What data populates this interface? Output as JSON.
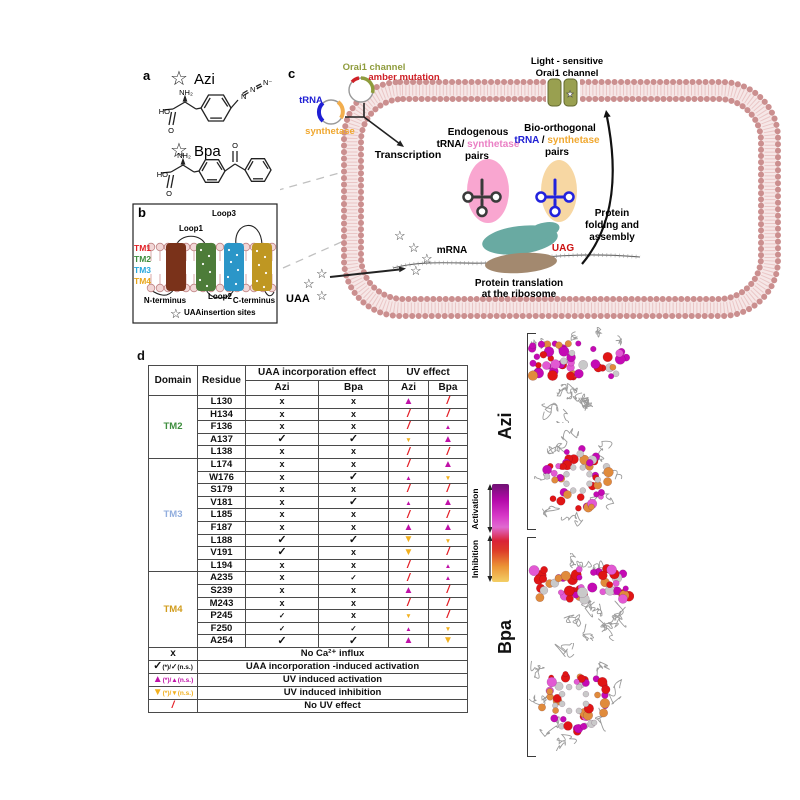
{
  "colors": {
    "magenta": "#c011a8",
    "orange": "#f2b01e",
    "red": "#e31f26"
  },
  "panel_a": {
    "label": "a",
    "azi_star": "☆",
    "azi_name": "Azi",
    "azi_nh2": "NH₂",
    "azi_ho": "HO",
    "azi_o": "O",
    "azide_n1": "N",
    "azide_n2": "N⁺",
    "azide_n3": "N⁻",
    "bpa_star": "☆",
    "bpa_name": "Bpa",
    "bpa_nh2": "NH₂",
    "bpa_ho": "HO",
    "bpa_o": "O",
    "bpa_keto_o": "O"
  },
  "panel_b": {
    "label": "b",
    "loop1": "Loop1",
    "loop2": "Loop2",
    "loop3": "Loop3",
    "tm1": {
      "label": "TM1",
      "color": "#e31e24"
    },
    "tm2": {
      "label": "TM2",
      "color": "#3e8e3e"
    },
    "tm3": {
      "label": "TM3",
      "color": "#2aa8dc"
    },
    "tm4": {
      "label": "TM4",
      "color": "#e8a61b"
    },
    "n_terminus": "N-terminus",
    "c_terminus": "C-terminus",
    "star": "☆",
    "insertion_note": "UAAinsertion sites"
  },
  "panel_c": {
    "label": "c",
    "plasmid_gene": "Orai1 channel",
    "plasmid_mutation": "amber mutation",
    "trna": "tRNA",
    "synthetase": "synthetase",
    "transcription": "Transcription",
    "endogenous": {
      "line1": "Endogenous",
      "trna": "tRNA/",
      "synthetase": " synthetase",
      "line3": "pairs"
    },
    "bio": {
      "line1": "Bio-orthogonal",
      "trna": "tRNA",
      "sep": " / ",
      "synthetase": "synthetase",
      "line3": "pairs"
    },
    "light_sensitive_1": "Light - sensitive",
    "light_sensitive_2": "Orai1 channel",
    "uaa": "UAA",
    "mrna": "mRNA",
    "uag": "UAG",
    "translation_1": "Protein translation",
    "translation_2": "at the ribosome",
    "folding_1": "Protein",
    "folding_2": "folding and",
    "folding_3": "assembly",
    "channel_star": "★"
  },
  "panel_d": {
    "label": "d",
    "table": {
      "headers": {
        "domain": "Domain",
        "residue": "Residue",
        "uaa_effect": "UAA incorporation effect",
        "uv_effect": "UV effect",
        "sub": [
          "Azi",
          "Bpa",
          "Azi",
          "Bpa"
        ]
      },
      "groups": [
        {
          "domain": "TM2",
          "color": "#3e8e3e",
          "rows": [
            {
              "residue": "L130",
              "cells": [
                "x",
                "x",
                "u",
                "s"
              ]
            },
            {
              "residue": "H134",
              "cells": [
                "x",
                "x",
                "s",
                "s"
              ]
            },
            {
              "residue": "F136",
              "cells": [
                "x",
                "x",
                "s",
                "un"
              ]
            },
            {
              "residue": "A137",
              "cells": [
                "c",
                "c",
                "dn",
                "u"
              ]
            },
            {
              "residue": "L138",
              "cells": [
                "x",
                "x",
                "s",
                "s"
              ]
            }
          ]
        },
        {
          "domain": "TM3",
          "color": "#92aede",
          "rows": [
            {
              "residue": "L174",
              "cells": [
                "x",
                "x",
                "s",
                "u"
              ]
            },
            {
              "residue": "W176",
              "cells": [
                "x",
                "c",
                "un",
                "dn"
              ]
            },
            {
              "residue": "S179",
              "cells": [
                "x",
                "x",
                "s",
                "s"
              ]
            },
            {
              "residue": "V181",
              "cells": [
                "x",
                "c",
                "un",
                "u"
              ]
            },
            {
              "residue": "L185",
              "cells": [
                "x",
                "x",
                "s",
                "s"
              ]
            },
            {
              "residue": "F187",
              "cells": [
                "x",
                "x",
                "u",
                "u"
              ]
            },
            {
              "residue": "L188",
              "cells": [
                "c",
                "c",
                "d",
                "dn"
              ]
            },
            {
              "residue": "V191",
              "cells": [
                "c",
                "x",
                "d",
                "s"
              ]
            },
            {
              "residue": "L194",
              "cells": [
                "x",
                "x",
                "s",
                "un"
              ]
            }
          ]
        },
        {
          "domain": "TM4",
          "color": "#d19c1d",
          "rows": [
            {
              "residue": "A235",
              "cells": [
                "x",
                "cn",
                "s",
                "un"
              ]
            },
            {
              "residue": "S239",
              "cells": [
                "x",
                "x",
                "u",
                "s"
              ]
            },
            {
              "residue": "M243",
              "cells": [
                "x",
                "x",
                "s",
                "s"
              ]
            },
            {
              "residue": "P245",
              "cells": [
                "cn",
                "x",
                "dn",
                "s"
              ]
            },
            {
              "residue": "F250",
              "cells": [
                "cn",
                "cn",
                "un",
                "dn"
              ]
            },
            {
              "residue": "A254",
              "cells": [
                "c",
                "c",
                "u",
                "d"
              ]
            }
          ]
        }
      ],
      "legend": [
        {
          "key": [
            {
              "t": "x",
              "c": "sx lg"
            }
          ],
          "text": "No Ca²⁺ influx"
        },
        {
          "key": [
            {
              "t": "✓",
              "c": "ck b"
            },
            {
              "t": "(*)/",
              "c": "tn"
            },
            {
              "t": "✓",
              "c": "ck s"
            },
            {
              "t": "(n.s.)",
              "c": "tn"
            }
          ],
          "text": "UAA incorporation -induced activation"
        },
        {
          "key": [
            {
              "t": "▲",
              "c": "up b"
            },
            {
              "t": "(*)/",
              "c": "tn up"
            },
            {
              "t": "▲",
              "c": "up s"
            },
            {
              "t": "(n.s.)",
              "c": "tn up"
            }
          ],
          "text": "UV induced activation"
        },
        {
          "key": [
            {
              "t": "▼",
              "c": "dn b"
            },
            {
              "t": "(*)/",
              "c": "tn dn"
            },
            {
              "t": "▼",
              "c": "dn s"
            },
            {
              "t": "(n.s.)",
              "c": "tn dn"
            }
          ],
          "text": "UV induced inhibition"
        },
        {
          "key": [
            {
              "t": "/",
              "c": "sl lg"
            }
          ],
          "text": "No UV effect"
        }
      ]
    },
    "colorbar": {
      "activation": "Activation",
      "inhibition": "Inhibition"
    },
    "structures": {
      "azi_label": "Azi",
      "bpa_label": "Bpa",
      "palette": [
        "#c40ab4",
        "#e259d3",
        "#e01515",
        "#e08b3c",
        "#c9c9c9"
      ]
    }
  }
}
